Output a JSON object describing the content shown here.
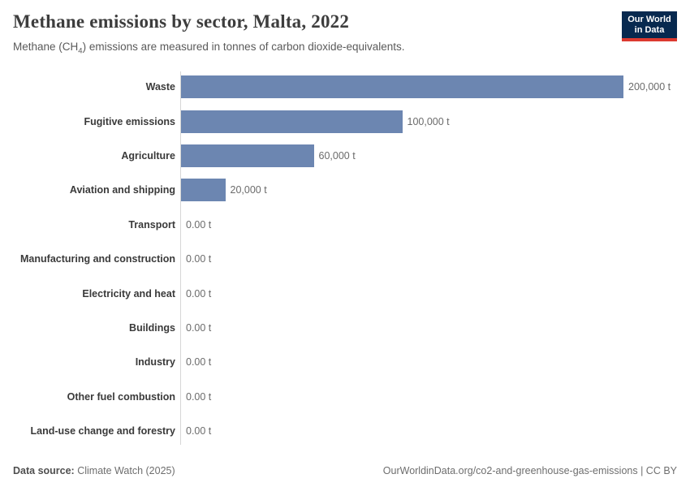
{
  "header": {
    "title": "Methane emissions by sector, Malta, 2022",
    "subtitle_prefix": "Methane (CH",
    "subtitle_sub": "4",
    "subtitle_suffix": ") emissions are measured in tonnes of carbon dioxide-equivalents.",
    "logo": {
      "line1": "Our World",
      "line2": "in Data"
    }
  },
  "chart_data": {
    "type": "bar",
    "orientation": "horizontal",
    "title": "Methane emissions by sector, Malta, 2022",
    "unit": "t",
    "categories": [
      "Waste",
      "Fugitive emissions",
      "Agriculture",
      "Aviation and shipping",
      "Transport",
      "Manufacturing and construction",
      "Electricity and heat",
      "Buildings",
      "Industry",
      "Other fuel combustion",
      "Land-use change and forestry"
    ],
    "values": [
      200000,
      100000,
      60000,
      20000,
      0,
      0,
      0,
      0,
      0,
      0,
      0
    ],
    "value_labels": [
      "200,000 t",
      "100,000 t",
      "60,000 t",
      "20,000 t",
      "0.00 t",
      "0.00 t",
      "0.00 t",
      "0.00 t",
      "0.00 t",
      "0.00 t",
      "0.00 t"
    ],
    "xlim": [
      0,
      200000
    ],
    "grid": false,
    "legend": "none",
    "bar_color": "#6c86b1",
    "axis_color": "#d6d6d6"
  },
  "footer": {
    "source_label": "Data source:",
    "source_value": "Climate Watch (2025)",
    "link": "OurWorldinData.org/co2-and-greenhouse-gas-emissions | CC BY"
  }
}
